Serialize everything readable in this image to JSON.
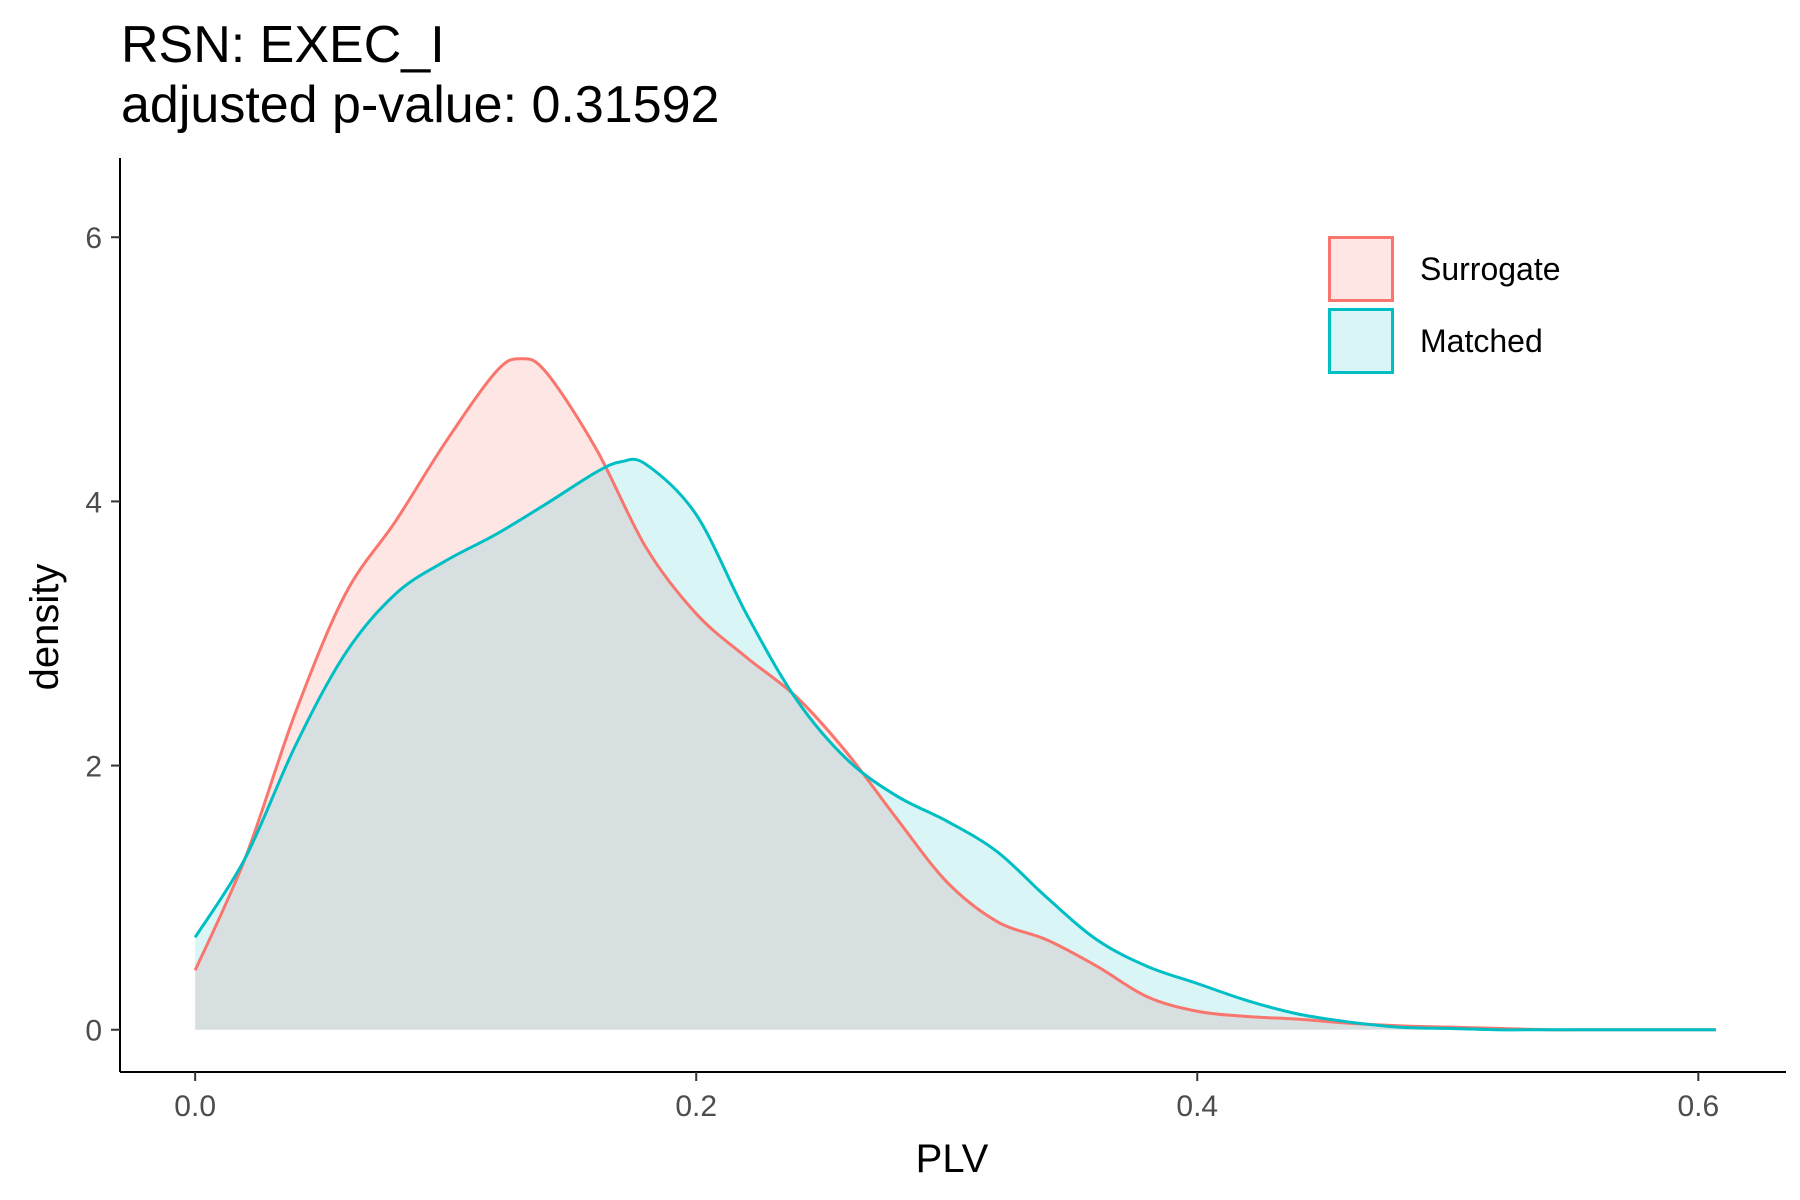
{
  "title_line1": "RSN: EXEC_I",
  "title_line2": "adjusted p-value: 0.31592",
  "chart_data": {
    "type": "area",
    "title": "RSN: EXEC_I",
    "subtitle": "adjusted p-value: 0.31592",
    "xlabel": "PLV",
    "ylabel": "density",
    "xlim": [
      -0.03,
      0.635
    ],
    "ylim": [
      -0.32,
      6.6
    ],
    "x_ticks": [
      0.0,
      0.2,
      0.4,
      0.6
    ],
    "x_tick_labels": [
      "0.0",
      "0.2",
      "0.4",
      "0.6"
    ],
    "y_ticks": [
      0,
      2,
      4,
      6
    ],
    "y_tick_labels": [
      "0",
      "2",
      "4",
      "6"
    ],
    "grid": false,
    "legend_position": "top-right",
    "series": [
      {
        "name": "Surrogate",
        "color": "#F8766D",
        "fill": "#F8766D",
        "fill_opacity": 0.18,
        "x": [
          0.0,
          0.02,
          0.04,
          0.06,
          0.08,
          0.1,
          0.12,
          0.13,
          0.14,
          0.16,
          0.18,
          0.2,
          0.22,
          0.24,
          0.26,
          0.28,
          0.3,
          0.32,
          0.34,
          0.36,
          0.38,
          0.4,
          0.42,
          0.44,
          0.46,
          0.48,
          0.5,
          0.52,
          0.54,
          0.56,
          0.58,
          0.607
        ],
        "values": [
          0.45,
          1.3,
          2.4,
          3.3,
          3.85,
          4.45,
          4.98,
          5.08,
          4.98,
          4.4,
          3.65,
          3.15,
          2.82,
          2.52,
          2.1,
          1.6,
          1.12,
          0.82,
          0.68,
          0.48,
          0.25,
          0.14,
          0.1,
          0.08,
          0.05,
          0.03,
          0.02,
          0.01,
          0.0,
          0.0,
          0.0,
          0.0
        ]
      },
      {
        "name": "Matched",
        "color": "#00BFC4",
        "fill": "#00BFC4",
        "fill_opacity": 0.15,
        "x": [
          0.0,
          0.02,
          0.04,
          0.06,
          0.08,
          0.1,
          0.12,
          0.14,
          0.16,
          0.17,
          0.18,
          0.2,
          0.22,
          0.24,
          0.26,
          0.28,
          0.3,
          0.32,
          0.34,
          0.36,
          0.38,
          0.4,
          0.42,
          0.44,
          0.46,
          0.48,
          0.5,
          0.52,
          0.54,
          0.56,
          0.58,
          0.607
        ],
        "values": [
          0.7,
          1.3,
          2.15,
          2.85,
          3.3,
          3.55,
          3.75,
          3.98,
          4.22,
          4.3,
          4.28,
          3.9,
          3.15,
          2.5,
          2.05,
          1.77,
          1.58,
          1.35,
          1.0,
          0.68,
          0.48,
          0.35,
          0.22,
          0.12,
          0.06,
          0.02,
          0.01,
          0.0,
          0.0,
          0.0,
          0.0,
          0.0
        ]
      }
    ]
  }
}
